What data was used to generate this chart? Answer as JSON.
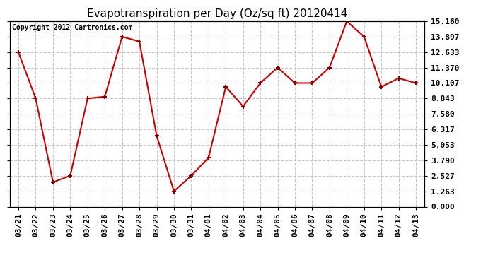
{
  "title": "Evapotranspiration per Day (Oz/sq ft) 20120414",
  "copyright_text": "Copyright 2012 Cartronics.com",
  "dates": [
    "03/21",
    "03/22",
    "03/23",
    "03/24",
    "03/25",
    "03/26",
    "03/27",
    "03/28",
    "03/29",
    "03/30",
    "03/31",
    "04/01",
    "04/02",
    "04/03",
    "04/04",
    "04/05",
    "04/06",
    "04/07",
    "04/08",
    "04/09",
    "04/10",
    "04/11",
    "04/12",
    "04/13"
  ],
  "values": [
    12.633,
    8.843,
    2.0,
    2.527,
    8.843,
    9.0,
    13.897,
    13.5,
    5.8,
    1.263,
    2.527,
    4.0,
    9.8,
    8.2,
    10.107,
    11.37,
    10.107,
    10.107,
    11.37,
    15.16,
    13.897,
    9.8,
    10.5,
    10.107
  ],
  "y_ticks": [
    0.0,
    1.263,
    2.527,
    3.79,
    5.053,
    6.317,
    7.58,
    8.843,
    10.107,
    11.37,
    12.633,
    13.897,
    15.16
  ],
  "ylim": [
    0.0,
    15.16
  ],
  "line_color": "#cc0000",
  "marker": "+",
  "marker_color": "#880000",
  "bg_color": "#ffffff",
  "plot_bg_color": "#ffffff",
  "grid_color": "#c8c8c8",
  "title_fontsize": 11,
  "copyright_fontsize": 7,
  "tick_fontsize": 8
}
